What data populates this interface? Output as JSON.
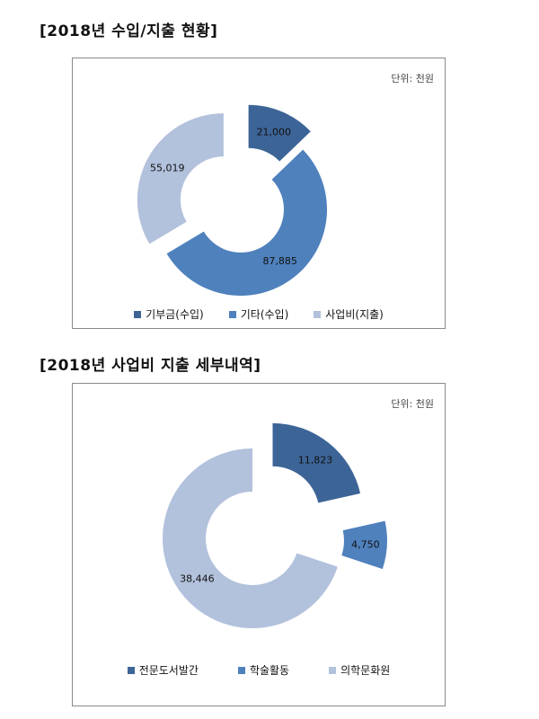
{
  "sections": [
    {
      "title": "[2018년 수입/지출 현황]"
    },
    {
      "title": "[2018년 사업비 지출 세부내역]"
    }
  ],
  "chart_data": [
    {
      "type": "pie",
      "variant": "exploded-doughnut",
      "title": "",
      "unit_label": "단위: 천원",
      "legend_position": "bottom",
      "categories": [
        "기부금(수입)",
        "기타(수입)",
        "사업비(지출)"
      ],
      "values": [
        21000,
        87885,
        55019
      ],
      "value_labels": [
        "21,000",
        "87,885",
        "55,019"
      ],
      "colors": [
        "#3d6497",
        "#4f81bd",
        "#b2c1dc"
      ]
    },
    {
      "type": "pie",
      "variant": "exploded-doughnut",
      "title": "",
      "unit_label": "단위: 천원",
      "legend_position": "bottom",
      "categories": [
        "전문도서발간",
        "학술활동",
        "의학문화원"
      ],
      "values": [
        11823,
        4750,
        38446
      ],
      "value_labels": [
        "11,823",
        "4,750",
        "38,446"
      ],
      "colors": [
        "#3d6497",
        "#4f81bd",
        "#b2c1dc"
      ]
    }
  ]
}
